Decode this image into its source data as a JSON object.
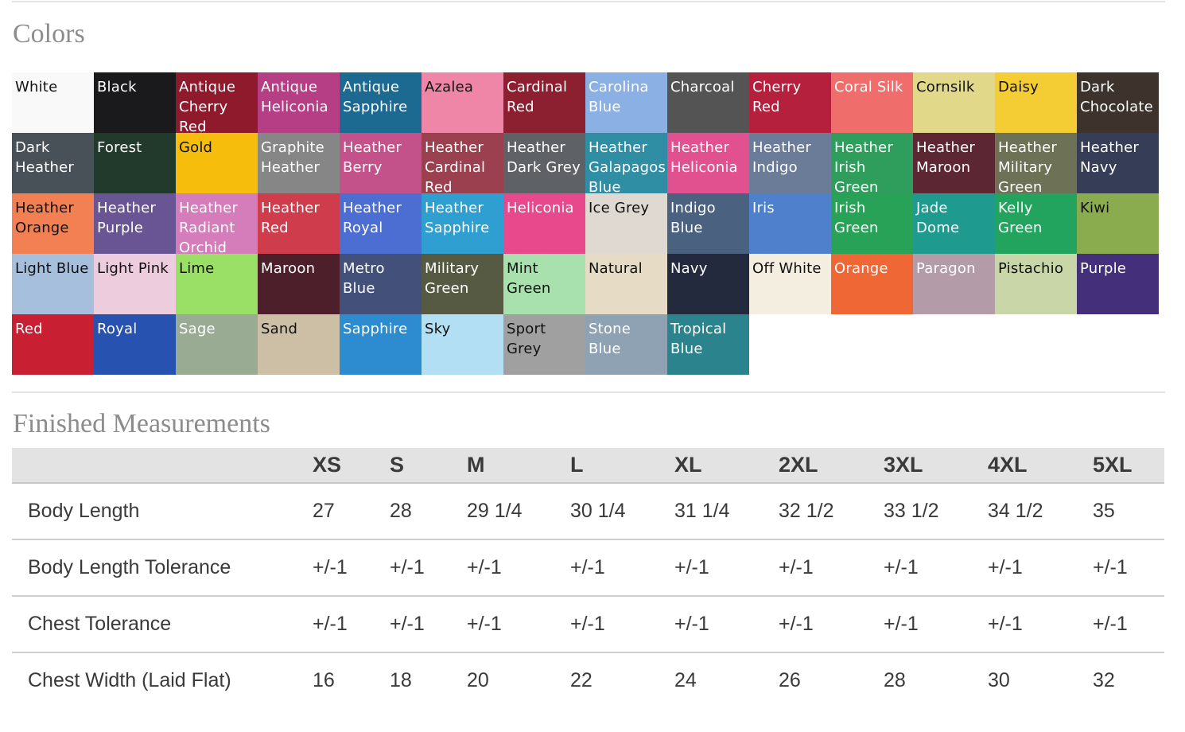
{
  "colors_section": {
    "title": "Colors",
    "swatches": [
      {
        "name": "White",
        "bg": "#f9f9f9",
        "fg": "#111111"
      },
      {
        "name": "Black",
        "bg": "#1a1a1c",
        "fg": "#ffffff"
      },
      {
        "name": "Antique Cherry Red",
        "bg": "#8e1a2c",
        "fg": "#ffffff"
      },
      {
        "name": "Antique Heliconia",
        "bg": "#b53e84",
        "fg": "#ffffff"
      },
      {
        "name": "Antique Sapphire",
        "bg": "#1c6a92",
        "fg": "#ffffff"
      },
      {
        "name": "Azalea",
        "bg": "#ef86a7",
        "fg": "#111111"
      },
      {
        "name": "Cardinal Red",
        "bg": "#8c1f30",
        "fg": "#ffffff"
      },
      {
        "name": "Carolina Blue",
        "bg": "#8bb0e4",
        "fg": "#ffffff"
      },
      {
        "name": "Charcoal",
        "bg": "#545454",
        "fg": "#ffffff"
      },
      {
        "name": "Cherry Red",
        "bg": "#b5203c",
        "fg": "#ffffff"
      },
      {
        "name": "Coral Silk",
        "bg": "#ef6e6c",
        "fg": "#ffffff"
      },
      {
        "name": "Cornsilk",
        "bg": "#e2d889",
        "fg": "#111111"
      },
      {
        "name": "Daisy",
        "bg": "#f4cc33",
        "fg": "#111111"
      },
      {
        "name": "Dark Chocolate",
        "bg": "#3d332c",
        "fg": "#ffffff"
      },
      {
        "name": "Dark Heather",
        "bg": "#485058",
        "fg": "#ffffff"
      },
      {
        "name": "Forest",
        "bg": "#223a2b",
        "fg": "#ffffff"
      },
      {
        "name": "Gold",
        "bg": "#f6bd0c",
        "fg": "#111111"
      },
      {
        "name": "Graphite Heather",
        "bg": "#868686",
        "fg": "#ffffff"
      },
      {
        "name": "Heather Berry",
        "bg": "#c4528a",
        "fg": "#ffffff"
      },
      {
        "name": "Heather Cardinal Red",
        "bg": "#9a404f",
        "fg": "#ffffff"
      },
      {
        "name": "Heather Dark Grey",
        "bg": "#5e6266",
        "fg": "#ffffff"
      },
      {
        "name": "Heather Galapagos Blue",
        "bg": "#2f8ea4",
        "fg": "#ffffff"
      },
      {
        "name": "Heather Heliconia",
        "bg": "#e2518f",
        "fg": "#ffffff"
      },
      {
        "name": "Heather Indigo",
        "bg": "#6a7c98",
        "fg": "#ffffff"
      },
      {
        "name": "Heather Irish Green",
        "bg": "#2f9e5c",
        "fg": "#ffffff"
      },
      {
        "name": "Heather Maroon",
        "bg": "#5c2733",
        "fg": "#ffffff"
      },
      {
        "name": "Heather Military Green",
        "bg": "#6d7155",
        "fg": "#ffffff"
      },
      {
        "name": "Heather Navy",
        "bg": "#363d56",
        "fg": "#ffffff"
      },
      {
        "name": "Heather Orange",
        "bg": "#f28052",
        "fg": "#111111"
      },
      {
        "name": "Heather Purple",
        "bg": "#695593",
        "fg": "#ffffff"
      },
      {
        "name": "Heather Radiant Orchid",
        "bg": "#d57cba",
        "fg": "#ffffff"
      },
      {
        "name": "Heather Red",
        "bg": "#cf3d4c",
        "fg": "#ffffff"
      },
      {
        "name": "Heather Royal",
        "bg": "#4c6ed2",
        "fg": "#ffffff"
      },
      {
        "name": "Heather Sapphire",
        "bg": "#2f9fd2",
        "fg": "#ffffff"
      },
      {
        "name": "Heliconia",
        "bg": "#e8488c",
        "fg": "#ffffff"
      },
      {
        "name": "Ice Grey",
        "bg": "#dfd9d2",
        "fg": "#111111"
      },
      {
        "name": "Indigo Blue",
        "bg": "#4a6280",
        "fg": "#ffffff"
      },
      {
        "name": "Iris",
        "bg": "#4e80cc",
        "fg": "#ffffff"
      },
      {
        "name": "Irish Green",
        "bg": "#28a257",
        "fg": "#ffffff"
      },
      {
        "name": "Jade Dome",
        "bg": "#1e9b8e",
        "fg": "#ffffff"
      },
      {
        "name": "Kelly Green",
        "bg": "#22a45e",
        "fg": "#ffffff"
      },
      {
        "name": "Kiwi",
        "bg": "#8aac4e",
        "fg": "#111111"
      },
      {
        "name": "Light Blue",
        "bg": "#a6bfdc",
        "fg": "#111111"
      },
      {
        "name": "Light Pink",
        "bg": "#ecccdd",
        "fg": "#111111"
      },
      {
        "name": "Lime",
        "bg": "#9be066",
        "fg": "#111111"
      },
      {
        "name": "Maroon",
        "bg": "#4d1f2b",
        "fg": "#ffffff"
      },
      {
        "name": "Metro Blue",
        "bg": "#42507a",
        "fg": "#ffffff"
      },
      {
        "name": "Military Green",
        "bg": "#575a43",
        "fg": "#ffffff"
      },
      {
        "name": "Mint Green",
        "bg": "#a9e1ae",
        "fg": "#111111"
      },
      {
        "name": "Natural",
        "bg": "#e6dbc4",
        "fg": "#111111"
      },
      {
        "name": "Navy",
        "bg": "#232a3e",
        "fg": "#ffffff"
      },
      {
        "name": "Off White",
        "bg": "#f3eee0",
        "fg": "#111111"
      },
      {
        "name": "Orange",
        "bg": "#ef6734",
        "fg": "#ffffff"
      },
      {
        "name": "Paragon",
        "bg": "#b39ca8",
        "fg": "#ffffff"
      },
      {
        "name": "Pistachio",
        "bg": "#c8d6a8",
        "fg": "#111111"
      },
      {
        "name": "Purple",
        "bg": "#44307a",
        "fg": "#ffffff"
      },
      {
        "name": "Red",
        "bg": "#c81f33",
        "fg": "#ffffff"
      },
      {
        "name": "Royal",
        "bg": "#2752b0",
        "fg": "#ffffff"
      },
      {
        "name": "Sage",
        "bg": "#9aab93",
        "fg": "#ffffff"
      },
      {
        "name": "Sand",
        "bg": "#cdbea6",
        "fg": "#111111"
      },
      {
        "name": "Sapphire",
        "bg": "#2c8ccf",
        "fg": "#ffffff"
      },
      {
        "name": "Sky",
        "bg": "#b3dff5",
        "fg": "#111111"
      },
      {
        "name": "Sport Grey",
        "bg": "#a0a0a0",
        "fg": "#111111"
      },
      {
        "name": "Stone Blue",
        "bg": "#8fa2b4",
        "fg": "#ffffff"
      },
      {
        "name": "Tropical Blue",
        "bg": "#2b838d",
        "fg": "#ffffff"
      }
    ]
  },
  "measurements_section": {
    "title": "Finished Measurements",
    "sizes": [
      "XS",
      "S",
      "M",
      "L",
      "XL",
      "2XL",
      "3XL",
      "4XL",
      "5XL"
    ],
    "rows": [
      {
        "label": "Body Length",
        "values": [
          "27",
          "28",
          "29 1/4",
          "30 1/4",
          "31 1/4",
          "32 1/2",
          "33 1/2",
          "34 1/2",
          "35"
        ]
      },
      {
        "label": "Body Length Tolerance",
        "values": [
          "+/-1",
          "+/-1",
          "+/-1",
          "+/-1",
          "+/-1",
          "+/-1",
          "+/-1",
          "+/-1",
          "+/-1"
        ]
      },
      {
        "label": "Chest Tolerance",
        "values": [
          "+/-1",
          "+/-1",
          "+/-1",
          "+/-1",
          "+/-1",
          "+/-1",
          "+/-1",
          "+/-1",
          "+/-1"
        ]
      },
      {
        "label": "Chest Width (Laid Flat)",
        "values": [
          "16",
          "18",
          "20",
          "22",
          "24",
          "26",
          "28",
          "30",
          "32"
        ]
      }
    ]
  }
}
